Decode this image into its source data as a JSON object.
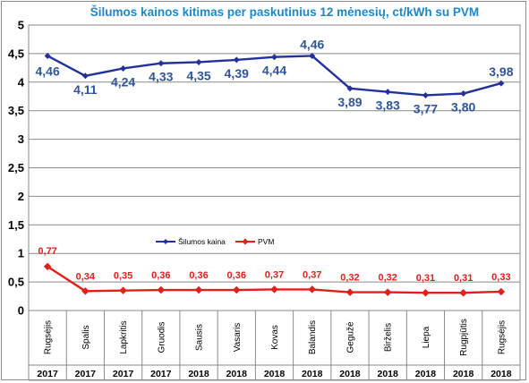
{
  "chart_data": {
    "type": "line",
    "title": "Šilumos kainos kitimas per paskutinius 12 mėnesių, ct/kWh su PVM",
    "categories": [
      "Rugsėjis",
      "Spalis",
      "Lapkritis",
      "Gruodis",
      "Sausis",
      "Vasaris",
      "Kovas",
      "Balandis",
      "Gegužė",
      "Birželis",
      "Liepa",
      "Rugpjūtis",
      "Rugsėjis"
    ],
    "years": [
      "2017",
      "2017",
      "2017",
      "2017",
      "2018",
      "2018",
      "2018",
      "2018",
      "2018",
      "2018",
      "2018",
      "2018",
      "2018"
    ],
    "ylim": [
      0,
      5
    ],
    "yticks": [
      "0",
      "0,5",
      "1",
      "1,5",
      "2",
      "2,5",
      "3",
      "3,5",
      "4",
      "4,5",
      "5"
    ],
    "grid": true,
    "legend_position": "center-left",
    "series": [
      {
        "name": "Šilumos kaina",
        "color": "#23329b",
        "values": [
          4.46,
          4.11,
          4.24,
          4.33,
          4.35,
          4.39,
          4.44,
          4.46,
          3.89,
          3.83,
          3.77,
          3.8,
          3.98
        ],
        "labels": [
          "4,46",
          "4,11",
          "4,24",
          "4,33",
          "4,35",
          "4,39",
          "4,44",
          "4,46",
          "3,89",
          "3,83",
          "3,77",
          "3,80",
          "3,98"
        ]
      },
      {
        "name": "PVM",
        "color": "#e0201b",
        "values": [
          0.77,
          0.34,
          0.35,
          0.36,
          0.36,
          0.36,
          0.37,
          0.37,
          0.32,
          0.32,
          0.31,
          0.31,
          0.33
        ],
        "labels": [
          "0,77",
          "0,34",
          "0,35",
          "0,36",
          "0,36",
          "0,36",
          "0,37",
          "0,37",
          "0,32",
          "0,32",
          "0,31",
          "0,31",
          "0,33"
        ]
      }
    ]
  }
}
